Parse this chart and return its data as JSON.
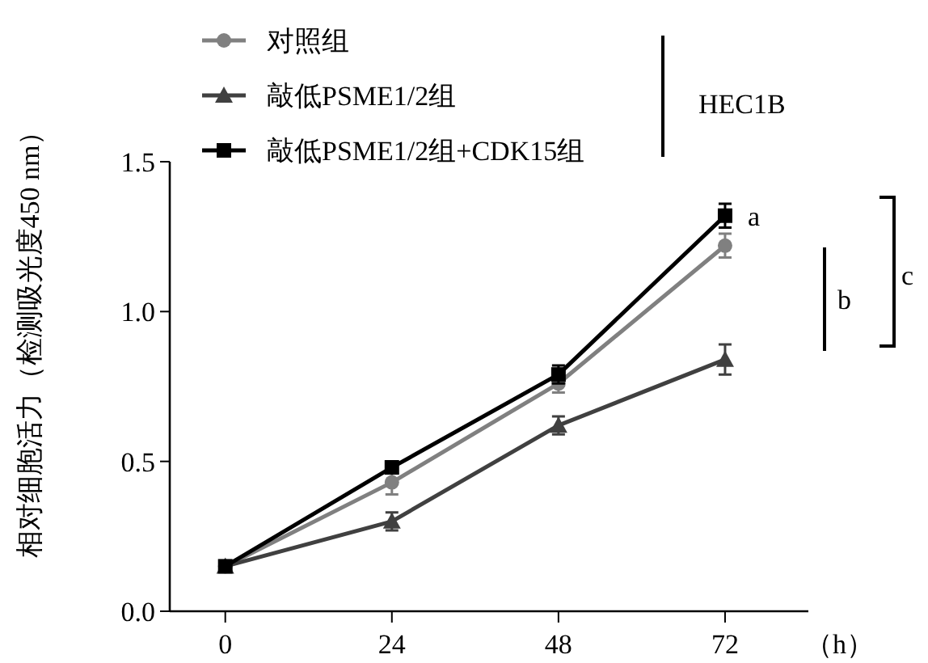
{
  "chart_data": {
    "type": "line",
    "xlabel": "（h）",
    "ylabel": "相对细胞活力（检测吸光度450 nm）",
    "x": [
      0,
      24,
      48,
      72
    ],
    "series": [
      {
        "name": "对照组",
        "color": "#808080",
        "marker": "circle",
        "values": [
          0.15,
          0.43,
          0.76,
          1.22
        ],
        "errors": [
          null,
          0.04,
          0.03,
          0.04
        ]
      },
      {
        "name": "敲低PSME1/2组",
        "color": "#404040",
        "marker": "triangle",
        "values": [
          0.15,
          0.3,
          0.62,
          0.84
        ],
        "errors": [
          null,
          0.03,
          0.03,
          0.05
        ]
      },
      {
        "name": "敲低PSME1/2组+CDK15组",
        "color": "#000000",
        "marker": "square",
        "values": [
          0.15,
          0.48,
          0.79,
          1.32
        ],
        "errors": [
          null,
          0.02,
          0.03,
          0.04
        ]
      }
    ],
    "xlim": [
      -8,
      84
    ],
    "xticks": [
      0,
      24,
      48,
      72
    ],
    "ylim": [
      0,
      1.5
    ],
    "yticks": [
      {
        "value": 0,
        "label": "0.0"
      },
      {
        "value": 0.5,
        "label": "0.5"
      },
      {
        "value": 1,
        "label": "1.0"
      },
      {
        "value": 1.5,
        "label": "1.5"
      }
    ],
    "legend": "top left",
    "grid": false,
    "line_style": "solid",
    "annotations": [
      {
        "text": "a",
        "x": 72,
        "y": 1.32
      },
      "b",
      "c",
      "HEC1B"
    ]
  }
}
